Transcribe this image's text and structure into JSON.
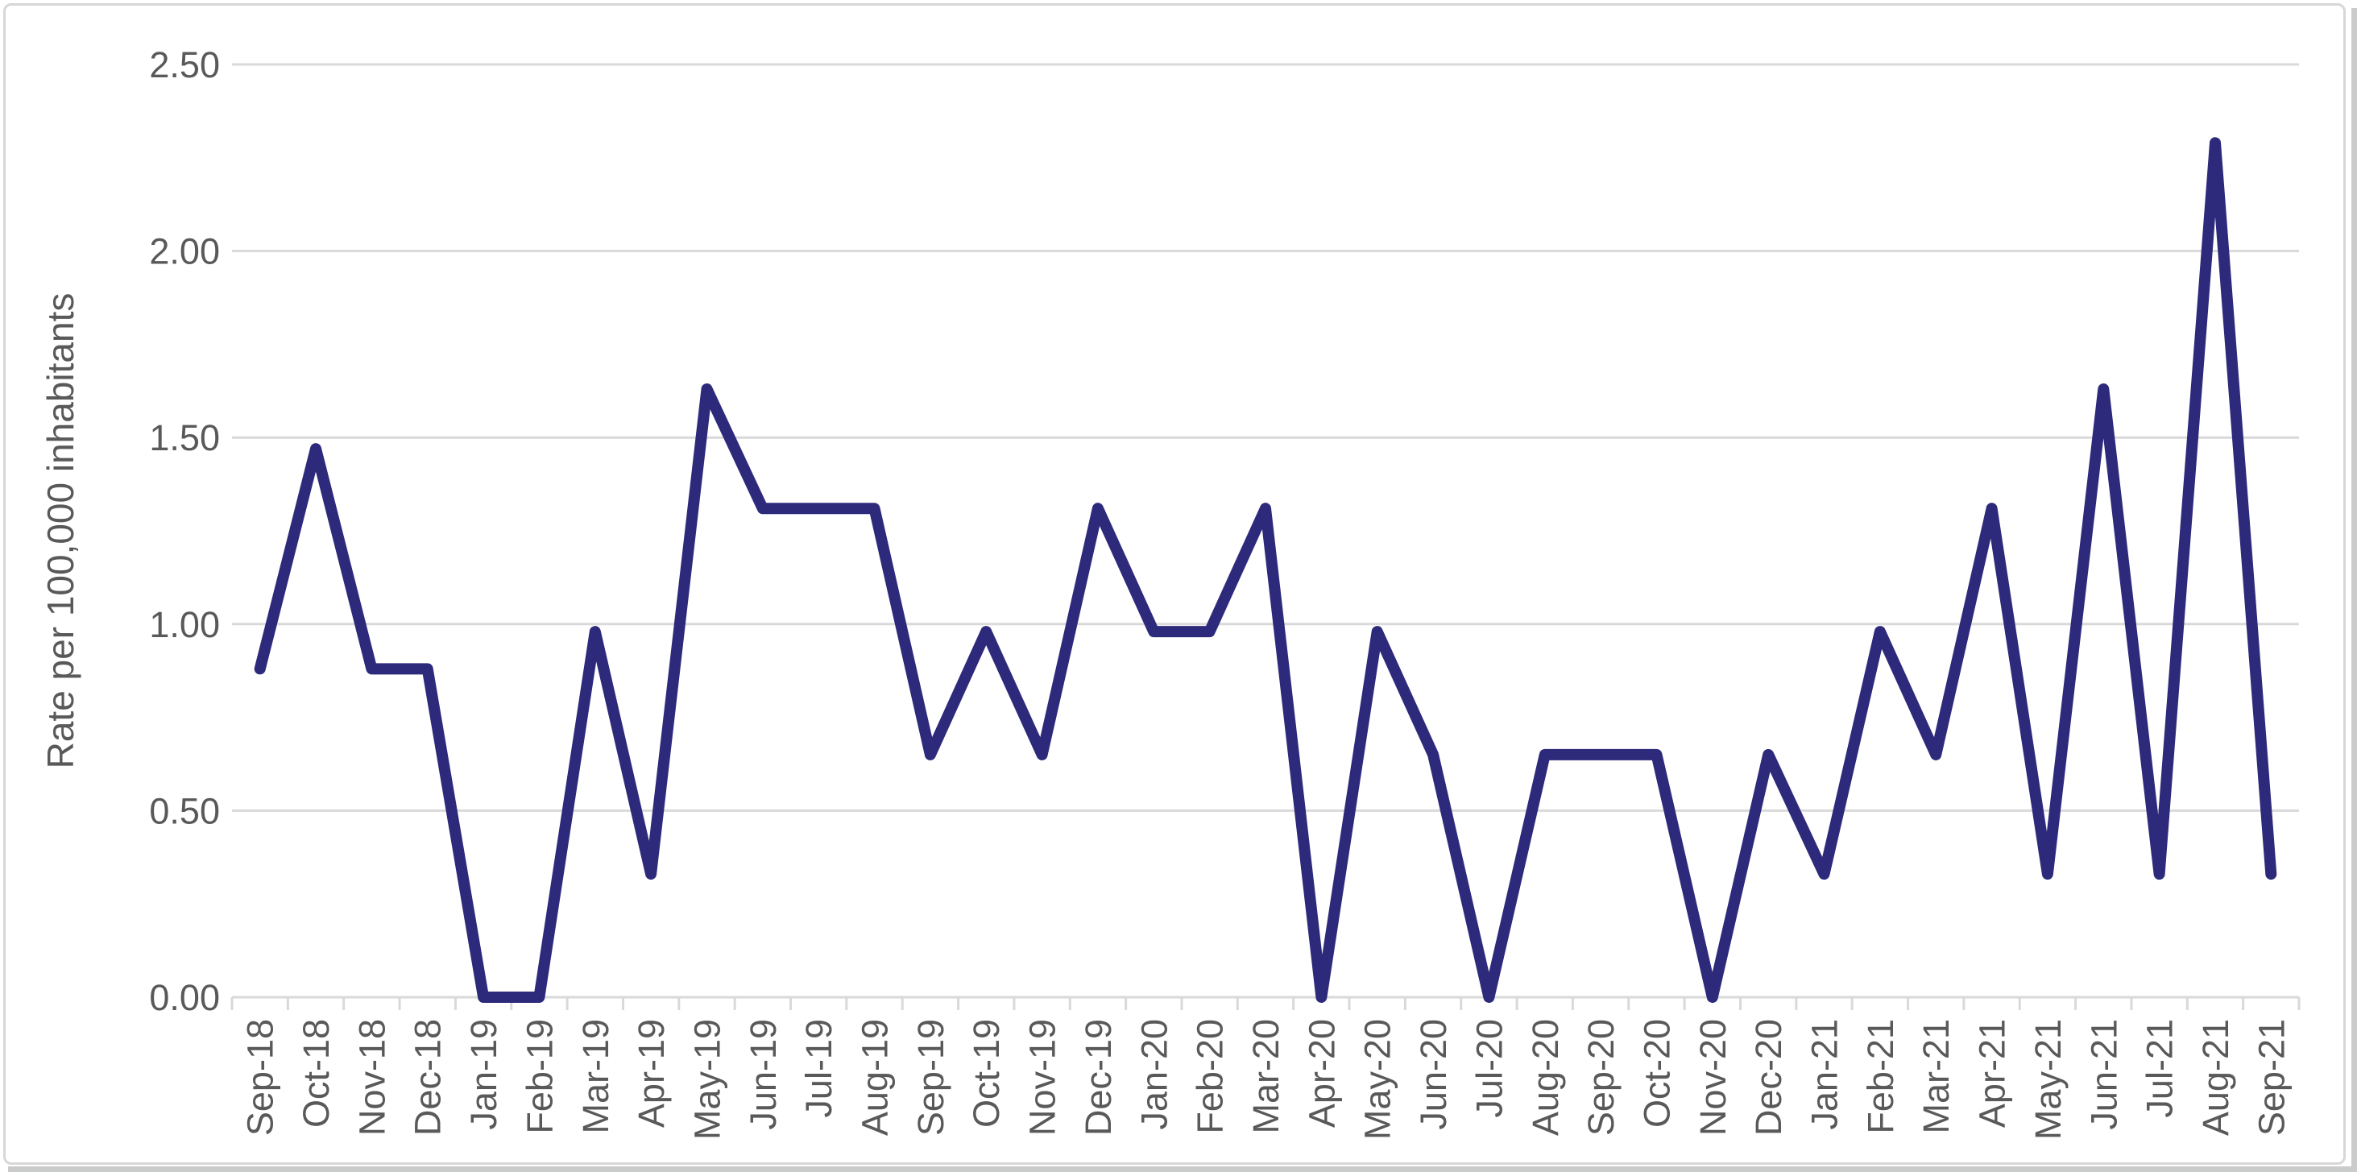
{
  "chart_data": {
    "type": "line",
    "title": "",
    "xlabel": "",
    "ylabel": "Rate per 100,000 inhabitants",
    "x_labels": [
      "Sep-18",
      "Oct-18",
      "Nov-18",
      "Dec-18",
      "Jan-19",
      "Feb-19",
      "Mar-19",
      "Apr-19",
      "May-19",
      "Jun-19",
      "Jul-19",
      "Aug-19",
      "Sep-19",
      "Oct-19",
      "Nov-19",
      "Dec-19",
      "Jan-20",
      "Feb-20",
      "Mar-20",
      "Apr-20",
      "May-20",
      "Jun-20",
      "Jul-20",
      "Aug-20",
      "Sep-20",
      "Oct-20",
      "Nov-20",
      "Dec-20",
      "Jan-21",
      "Feb-21",
      "Mar-21",
      "Apr-21",
      "May-21",
      "Jun-21",
      "Jul-21",
      "Aug-21",
      "Sep-21"
    ],
    "values": [
      0.88,
      1.47,
      0.88,
      0.88,
      0.0,
      0.0,
      0.98,
      0.33,
      1.63,
      1.31,
      1.31,
      1.31,
      0.65,
      0.98,
      0.65,
      1.31,
      0.98,
      0.98,
      1.31,
      0.0,
      0.98,
      0.65,
      0.0,
      0.65,
      0.65,
      0.65,
      0.0,
      0.65,
      0.33,
      0.98,
      0.65,
      1.31,
      0.33,
      1.63,
      0.33,
      2.29,
      0.33
    ],
    "ylim": [
      0,
      2.5
    ],
    "ytick_labels": [
      "0.00",
      "0.50",
      "1.00",
      "1.50",
      "2.00",
      "2.50"
    ],
    "ytick_values": [
      0,
      0.5,
      1.0,
      1.5,
      2.0,
      2.5
    ],
    "grid": "horizontal",
    "legend": "none",
    "colors": {
      "line": "#2e2a7b",
      "gridline": "#d9d9d9",
      "axis": "#d9d9d9",
      "tick": "#d9d9d9",
      "label": "#595959",
      "frame_border": "#d7d7d7"
    }
  }
}
